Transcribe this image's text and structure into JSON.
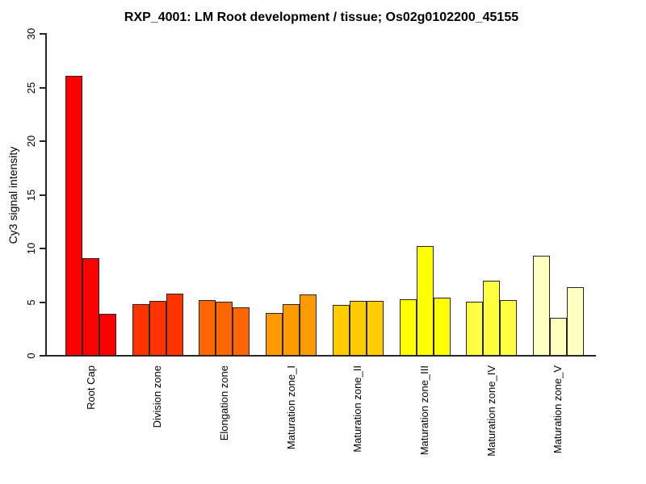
{
  "title": "RXP_4001: LM Root development / tissue; Os02g0102200_45155",
  "chart_data": {
    "type": "bar",
    "title": "RXP_4001: LM Root development / tissue; Os02g0102200_45155",
    "subtitle": "",
    "xlabel": "",
    "ylabel": "Cy3 signal intensity",
    "ylim": [
      0,
      30
    ],
    "yticks": [
      0,
      5,
      10,
      15,
      20,
      25,
      30
    ],
    "grid": false,
    "legend_position": "none",
    "bars_per_group": 3,
    "categories": [
      "Root Cap",
      "Division zone",
      "Elongation zone",
      "Maturation zone_I",
      "Maturation zone_II",
      "Maturation zone_III",
      "Maturation zone_IV",
      "Maturation zone_V"
    ],
    "group_colors": [
      "#FF0000",
      "#FF3300",
      "#FF6600",
      "#FF9900",
      "#FFCC00",
      "#FFFF00",
      "#FFFF40",
      "#FFFFBF"
    ],
    "values": [
      [
        26.1,
        9.1,
        3.9
      ],
      [
        4.8,
        5.1,
        5.8
      ],
      [
        5.2,
        5.0,
        4.5
      ],
      [
        4.0,
        4.8,
        5.7
      ],
      [
        4.7,
        5.1,
        5.1
      ],
      [
        5.3,
        10.2,
        5.4
      ],
      [
        5.0,
        7.0,
        5.2
      ],
      [
        9.3,
        3.5,
        6.4
      ]
    ],
    "bar_border_color": "#262626",
    "axis_color": "#262626",
    "text_color": "#000000"
  }
}
